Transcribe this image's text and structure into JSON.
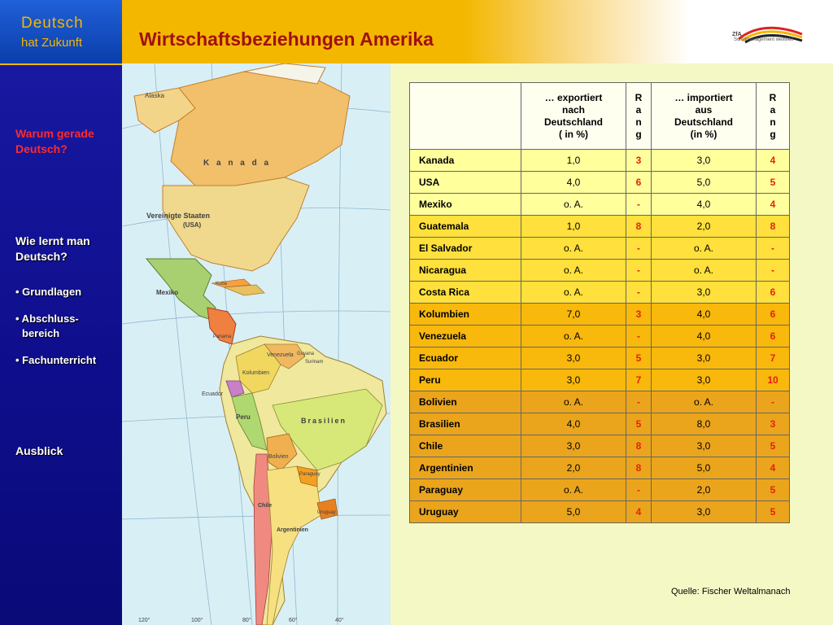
{
  "brand": {
    "line1": "Deutsch",
    "line2": "hat Zukunft"
  },
  "header": {
    "title": "Wirtschaftsbeziehungen Amerika",
    "logo_top": "ZfA",
    "logo_bottom": "Schulmanagement weltweit"
  },
  "sidebar": {
    "warum": "Warum gerade Deutsch?",
    "wie": "Wie lernt man Deutsch?",
    "items": [
      "• Grundlagen",
      "• Abschluss-",
      "bereich",
      "• Fachunterricht"
    ],
    "ausblick": "Ausblick"
  },
  "map": {
    "labels": {
      "kanada": "K a n a d a",
      "usa": "Vereinigte Staaten",
      "usa_sub": "(USA)",
      "mexiko": "Mexiko",
      "brasilien": "Brasilien",
      "peru": "Peru",
      "bolivien": "Bolivien",
      "chile": "Chile",
      "argentinien": "Argentinien",
      "kolumbien": "Kolumbien",
      "venezuela": "Venezuela",
      "ecuador": "Ecuador",
      "paraguay": "Paraguay",
      "uruguay": "Uruguay",
      "alaska": "Alaska",
      "guyana": "Guyana",
      "surinam": "Surinam",
      "panama": "Panama",
      "kuba": "Kuba",
      "lon120": "120°",
      "lon100": "100°",
      "lon80": "80°",
      "lon60": "60°",
      "lon40": "40°"
    }
  },
  "table": {
    "headers": {
      "country": "",
      "export": [
        "… exportiert",
        "nach",
        "Deutschland",
        "( in %)"
      ],
      "rang1": [
        "R",
        "a",
        "n",
        "g"
      ],
      "import": [
        "… importiert",
        "aus",
        "Deutschland",
        "(in %)"
      ],
      "rang2": [
        "R",
        "a",
        "n",
        "g"
      ]
    },
    "rows": [
      {
        "country": "Kanada",
        "export": "1,0",
        "rank1": "3",
        "import": "3,0",
        "rank2": "4"
      },
      {
        "country": "USA",
        "export": "4,0",
        "rank1": "6",
        "import": "5,0",
        "rank2": "5"
      },
      {
        "country": "Mexiko",
        "export": "o. A.",
        "rank1": "-",
        "import": "4,0",
        "rank2": "4"
      },
      {
        "country": "Guatemala",
        "export": "1,0",
        "rank1": "8",
        "import": "2,0",
        "rank2": "8"
      },
      {
        "country": "El Salvador",
        "export": "o. A.",
        "rank1": "-",
        "import": "o. A.",
        "rank2": "-"
      },
      {
        "country": "Nicaragua",
        "export": "o. A.",
        "rank1": "-",
        "import": "o. A.",
        "rank2": "-"
      },
      {
        "country": "Costa Rica",
        "export": "o. A.",
        "rank1": "-",
        "import": "3,0",
        "rank2": "6"
      },
      {
        "country": "Kolumbien",
        "export": "7,0",
        "rank1": "3",
        "import": "4,0",
        "rank2": "6"
      },
      {
        "country": "Venezuela",
        "export": "o. A.",
        "rank1": "-",
        "import": "4,0",
        "rank2": "6"
      },
      {
        "country": "Ecuador",
        "export": "3,0",
        "rank1": "5",
        "import": "3,0",
        "rank2": "7"
      },
      {
        "country": "Peru",
        "export": "3,0",
        "rank1": "7",
        "import": "3,0",
        "rank2": "10"
      },
      {
        "country": "Bolivien",
        "export": "o. A.",
        "rank1": "-",
        "import": "o. A.",
        "rank2": "-"
      },
      {
        "country": "Brasilien",
        "export": "4,0",
        "rank1": "5",
        "import": "8,0",
        "rank2": "3"
      },
      {
        "country": "Chile",
        "export": "3,0",
        "rank1": "8",
        "import": "3,0",
        "rank2": "5"
      },
      {
        "country": "Argentinien",
        "export": "2,0",
        "rank1": "8",
        "import": "5,0",
        "rank2": "4"
      },
      {
        "country": "Paraguay",
        "export": "o. A.",
        "rank1": "-",
        "import": "2,0",
        "rank2": "5"
      },
      {
        "country": "Uruguay",
        "export": "5,0",
        "rank1": "4",
        "import": "3,0",
        "rank2": "5"
      }
    ]
  },
  "source": "Quelle: Fischer Weltalmanach",
  "colors": {
    "title": "#a01010",
    "rank": "#e8200c",
    "accent": "#f3b700",
    "sidebar": "#0e0e8c"
  }
}
